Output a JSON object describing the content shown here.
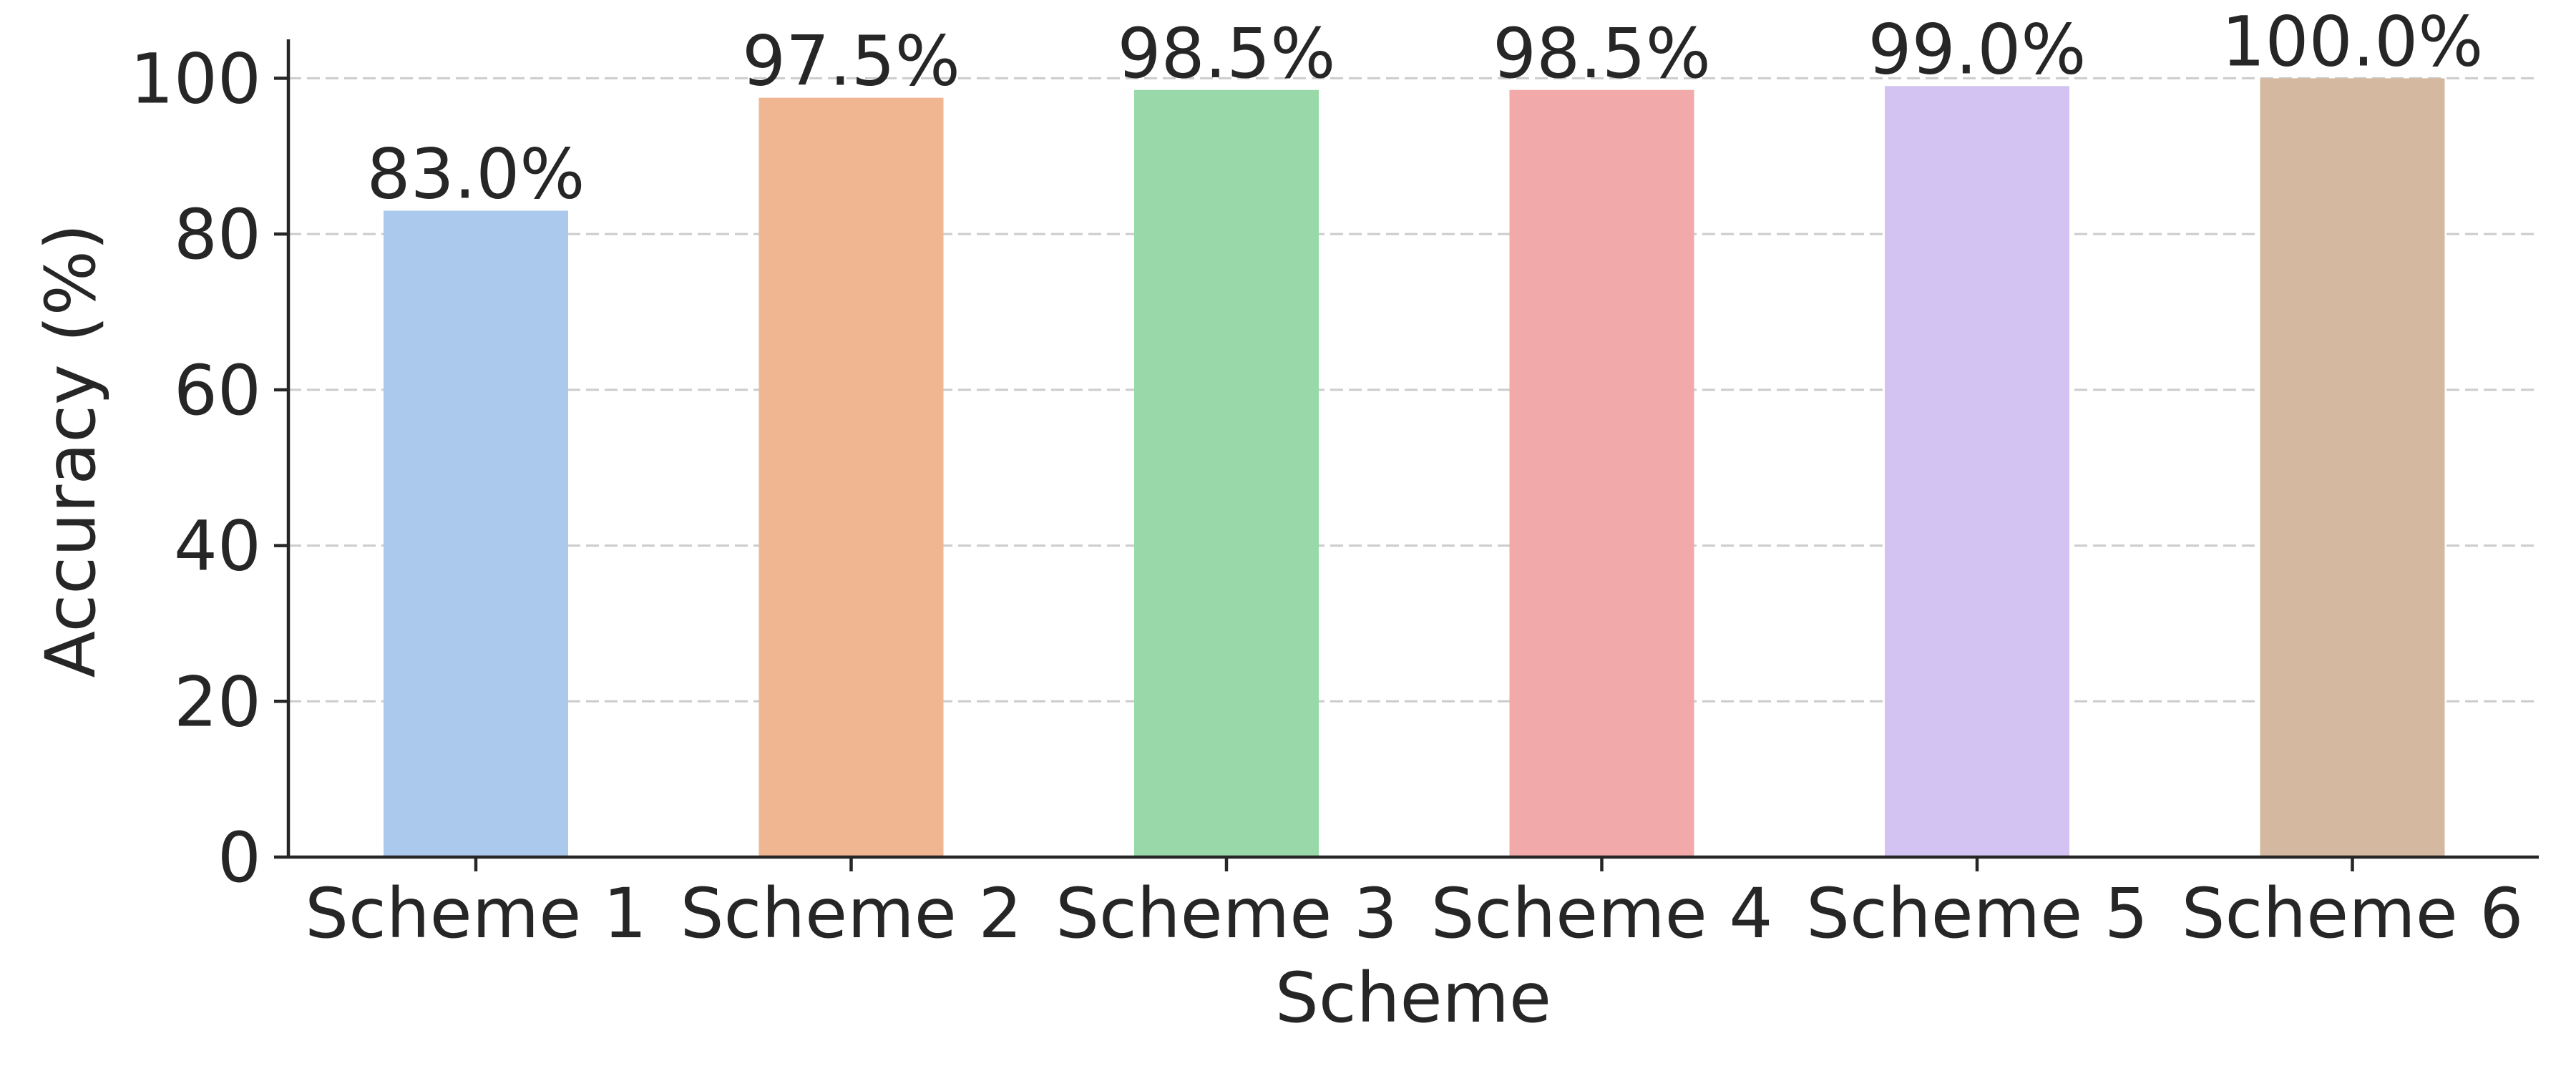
{
  "chart_data": {
    "type": "bar",
    "categories": [
      "Scheme 1",
      "Scheme 2",
      "Scheme 3",
      "Scheme 4",
      "Scheme 5",
      "Scheme 6"
    ],
    "values": [
      83.0,
      97.5,
      98.5,
      98.5,
      99.0,
      100.0
    ],
    "data_labels": [
      "83.0%",
      "97.5%",
      "98.5%",
      "98.5%",
      "99.0%",
      "100.0%"
    ],
    "colors": [
      "#abc9ec",
      "#f0b692",
      "#99d9a9",
      "#f1aaa9",
      "#d2c3f3",
      "#d4b9a0"
    ],
    "xlabel": "Scheme",
    "ylabel": "Accuracy (%)",
    "ylim": [
      0,
      105
    ],
    "yticks": [
      0,
      20,
      40,
      60,
      80,
      100
    ],
    "ytick_labels": [
      "0",
      "20",
      "40",
      "60",
      "80",
      "100"
    ],
    "grid": "y-dashed",
    "spines": "left-bottom"
  }
}
